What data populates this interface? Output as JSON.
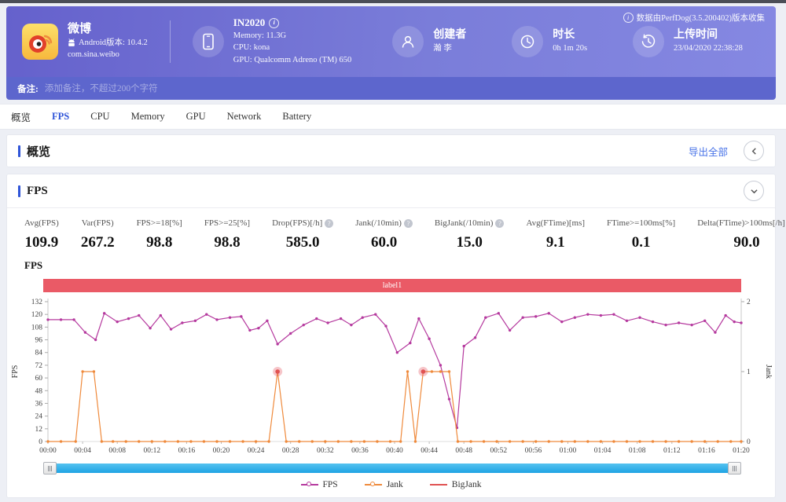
{
  "header": {
    "app": {
      "name": "微博",
      "android_version": "Android版本: 10.4.2",
      "package": "com.sina.weibo"
    },
    "device": {
      "name": "IN2020",
      "memory": "Memory: 11.3G",
      "cpu": "CPU: kona",
      "gpu": "GPU: Qualcomm Adreno (TM) 650"
    },
    "creator": {
      "label": "创建者",
      "value": "瀚 李"
    },
    "duration": {
      "label": "时长",
      "value": "0h 1m 20s"
    },
    "upload": {
      "label": "上传时间",
      "value": "23/04/2020 22:38:28"
    },
    "source_note": "数据由PerfDog(3.5.200402)版本收集"
  },
  "note_bar": {
    "label": "备注:",
    "placeholder": "添加备注，不超过200个字符",
    "value": ""
  },
  "tabs": [
    {
      "key": "overview",
      "label": "概览",
      "active": false
    },
    {
      "key": "fps",
      "label": "FPS",
      "active": true
    },
    {
      "key": "cpu",
      "label": "CPU",
      "active": false
    },
    {
      "key": "memory",
      "label": "Memory",
      "active": false
    },
    {
      "key": "gpu",
      "label": "GPU",
      "active": false
    },
    {
      "key": "network",
      "label": "Network",
      "active": false
    },
    {
      "key": "battery",
      "label": "Battery",
      "active": false
    }
  ],
  "overview_section": {
    "title": "概览",
    "export_label": "导出全部"
  },
  "fps_section": {
    "title": "FPS",
    "stats": [
      {
        "key": "avg-fps",
        "label": "Avg(FPS)",
        "value": "109.9",
        "help": false
      },
      {
        "key": "var-fps",
        "label": "Var(FPS)",
        "value": "267.2",
        "help": false
      },
      {
        "key": "fps-ge-18",
        "label": "FPS>=18[%]",
        "value": "98.8",
        "help": false
      },
      {
        "key": "fps-ge-25",
        "label": "FPS>=25[%]",
        "value": "98.8",
        "help": false
      },
      {
        "key": "drop-fps",
        "label": "Drop(FPS)[/h]",
        "value": "585.0",
        "help": true
      },
      {
        "key": "jank",
        "label": "Jank(/10min)",
        "value": "60.0",
        "help": true
      },
      {
        "key": "bigjank",
        "label": "BigJank(/10min)",
        "value": "15.0",
        "help": true
      },
      {
        "key": "avg-ftime",
        "label": "Avg(FTime)[ms]",
        "value": "9.1",
        "help": false
      },
      {
        "key": "ftime-ge-100ms",
        "label": "FTime>=100ms[%]",
        "value": "0.1",
        "help": false
      },
      {
        "key": "delta-ftime",
        "label": "Delta(FTime)>100ms[/h]",
        "value": "90.0",
        "help": true
      }
    ]
  },
  "chart_data": {
    "type": "line",
    "title": "FPS",
    "annotation_label": "label1",
    "annotation_color": "#ea5a66",
    "ylabel_left": "FPS",
    "ylabel_right": "Jank",
    "ylim_left": [
      0,
      132
    ],
    "ylim_right": [
      0,
      2
    ],
    "y_ticks_left": [
      0,
      12,
      24,
      36,
      48,
      60,
      72,
      84,
      96,
      108,
      120,
      132
    ],
    "y_ticks_right": [
      0,
      1,
      2
    ],
    "x_ticks": [
      "00:00",
      "00:04",
      "00:08",
      "00:12",
      "00:16",
      "00:20",
      "00:24",
      "00:28",
      "00:32",
      "00:36",
      "00:40",
      "00:44",
      "00:48",
      "00:52",
      "00:56",
      "01:00",
      "01:04",
      "01:08",
      "01:12",
      "01:16",
      "01:20"
    ],
    "x_tick_interval_seconds": 4,
    "x_range_seconds": [
      0,
      80
    ],
    "grid": false,
    "legend_position": "bottom",
    "legend": [
      {
        "key": "fps",
        "name": "FPS",
        "color": "#b5399e",
        "marker": "line-dot"
      },
      {
        "key": "jank",
        "name": "Jank",
        "color": "#ef8a3c",
        "marker": "line-dot"
      },
      {
        "key": "bigjank",
        "name": "BigJank",
        "color": "#e05252",
        "marker": "line"
      }
    ],
    "series": [
      {
        "name": "FPS",
        "axis": "left",
        "color": "#b5399e",
        "points": [
          [
            0,
            115
          ],
          [
            1.5,
            115
          ],
          [
            3,
            115
          ],
          [
            4.3,
            103
          ],
          [
            5.5,
            96
          ],
          [
            6.5,
            121
          ],
          [
            8,
            113
          ],
          [
            9.3,
            116
          ],
          [
            10.5,
            119
          ],
          [
            11.8,
            107
          ],
          [
            13,
            119
          ],
          [
            14.2,
            106
          ],
          [
            15.5,
            112
          ],
          [
            17,
            114
          ],
          [
            18.3,
            120
          ],
          [
            19.5,
            115
          ],
          [
            21,
            117
          ],
          [
            22.3,
            118
          ],
          [
            23.3,
            105
          ],
          [
            24.3,
            107
          ],
          [
            25.3,
            114
          ],
          [
            26.5,
            92
          ],
          [
            28,
            102
          ],
          [
            29.5,
            110
          ],
          [
            31,
            116
          ],
          [
            32.3,
            112
          ],
          [
            33.8,
            116
          ],
          [
            35,
            110
          ],
          [
            36.3,
            117
          ],
          [
            37.8,
            120
          ],
          [
            39,
            109
          ],
          [
            40.3,
            84
          ],
          [
            41.8,
            93
          ],
          [
            42.8,
            116
          ],
          [
            44,
            97
          ],
          [
            45.3,
            72
          ],
          [
            46.3,
            40
          ],
          [
            47.2,
            13
          ],
          [
            48,
            90
          ],
          [
            49.3,
            98
          ],
          [
            50.5,
            117
          ],
          [
            52,
            121
          ],
          [
            53.3,
            105
          ],
          [
            54.8,
            117
          ],
          [
            56.3,
            118
          ],
          [
            57.8,
            121
          ],
          [
            59.3,
            113
          ],
          [
            60.8,
            117
          ],
          [
            62.3,
            120
          ],
          [
            63.8,
            119
          ],
          [
            65.3,
            120
          ],
          [
            66.8,
            114
          ],
          [
            68.3,
            117
          ],
          [
            69.8,
            113
          ],
          [
            71.3,
            110
          ],
          [
            72.8,
            112
          ],
          [
            74.3,
            110
          ],
          [
            75.8,
            114
          ],
          [
            77,
            103
          ],
          [
            78.2,
            119
          ],
          [
            79.2,
            113
          ],
          [
            80,
            112
          ]
        ]
      },
      {
        "name": "Jank",
        "axis": "right",
        "color": "#ef8a3c",
        "points": [
          [
            0,
            0
          ],
          [
            1.5,
            0
          ],
          [
            3.2,
            0
          ],
          [
            4,
            1
          ],
          [
            5.3,
            1
          ],
          [
            6.2,
            0
          ],
          [
            7.5,
            0
          ],
          [
            9,
            0
          ],
          [
            10.5,
            0
          ],
          [
            12,
            0
          ],
          [
            13.5,
            0
          ],
          [
            15,
            0
          ],
          [
            16.5,
            0
          ],
          [
            18,
            0
          ],
          [
            19.5,
            0
          ],
          [
            21,
            0
          ],
          [
            22.5,
            0
          ],
          [
            24,
            0
          ],
          [
            25.5,
            0
          ],
          [
            26.5,
            1
          ],
          [
            27.5,
            0
          ],
          [
            29,
            0
          ],
          [
            30.5,
            0
          ],
          [
            32,
            0
          ],
          [
            33.5,
            0
          ],
          [
            35,
            0
          ],
          [
            36.5,
            0
          ],
          [
            38,
            0
          ],
          [
            39.5,
            0
          ],
          [
            40.7,
            0
          ],
          [
            41.5,
            1
          ],
          [
            42.4,
            0
          ],
          [
            43.3,
            1
          ],
          [
            44.3,
            1
          ],
          [
            45.3,
            1
          ],
          [
            46.3,
            1
          ],
          [
            47.3,
            0
          ],
          [
            48.8,
            0
          ],
          [
            50.3,
            0
          ],
          [
            51.8,
            0
          ],
          [
            53.3,
            0
          ],
          [
            54.8,
            0
          ],
          [
            56.3,
            0
          ],
          [
            57.8,
            0
          ],
          [
            59.3,
            0
          ],
          [
            60.8,
            0
          ],
          [
            62.3,
            0
          ],
          [
            63.8,
            0
          ],
          [
            65.3,
            0
          ],
          [
            66.8,
            0
          ],
          [
            68.3,
            0
          ],
          [
            69.8,
            0
          ],
          [
            71.3,
            0
          ],
          [
            72.8,
            0
          ],
          [
            74.3,
            0
          ],
          [
            75.8,
            0
          ],
          [
            77.3,
            0
          ],
          [
            78.8,
            0
          ],
          [
            80,
            0
          ]
        ]
      },
      {
        "name": "BigJank",
        "axis": "right",
        "color": "#e05252",
        "points": [
          [
            26.5,
            1
          ],
          [
            43.3,
            1
          ]
        ]
      }
    ]
  }
}
